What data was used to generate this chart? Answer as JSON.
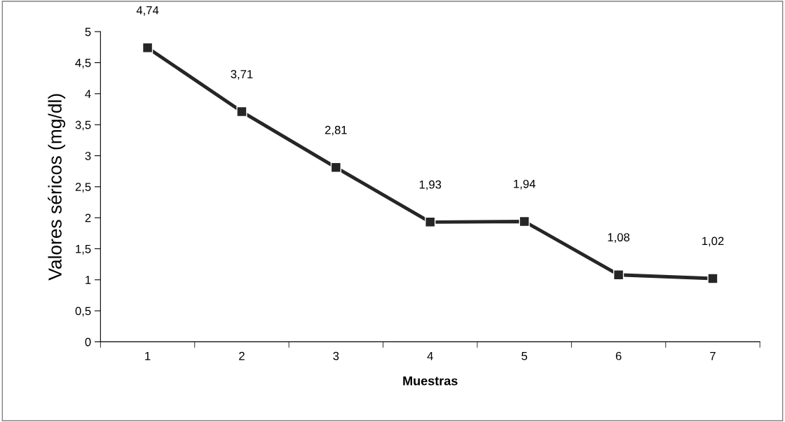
{
  "chart_data": {
    "type": "line",
    "xlabel": "Muestras",
    "ylabel": "Valores séricos (mg/dl)",
    "categories": [
      "1",
      "2",
      "3",
      "4",
      "5",
      "6",
      "7"
    ],
    "series": [
      {
        "color": "#262626",
        "values": [
          4.74,
          3.71,
          2.81,
          1.93,
          1.94,
          1.08,
          1.02
        ],
        "value_labels": [
          "4,74",
          "3,71",
          "2,81",
          "1,93",
          "1,94",
          "1,08",
          "1,02"
        ]
      }
    ],
    "ylim": [
      0,
      5
    ],
    "yticks": [
      0,
      {
        "value": 0.5,
        "label": "0,5"
      },
      1,
      {
        "value": 1.5,
        "label": "1,5"
      },
      2,
      {
        "value": 2.5,
        "label": "2,5"
      },
      3,
      {
        "value": 3.5,
        "label": "3,5"
      },
      4,
      {
        "value": 4.5,
        "label": "4,5"
      },
      5
    ],
    "marker": "square",
    "line_style": "solid",
    "grid": false
  }
}
